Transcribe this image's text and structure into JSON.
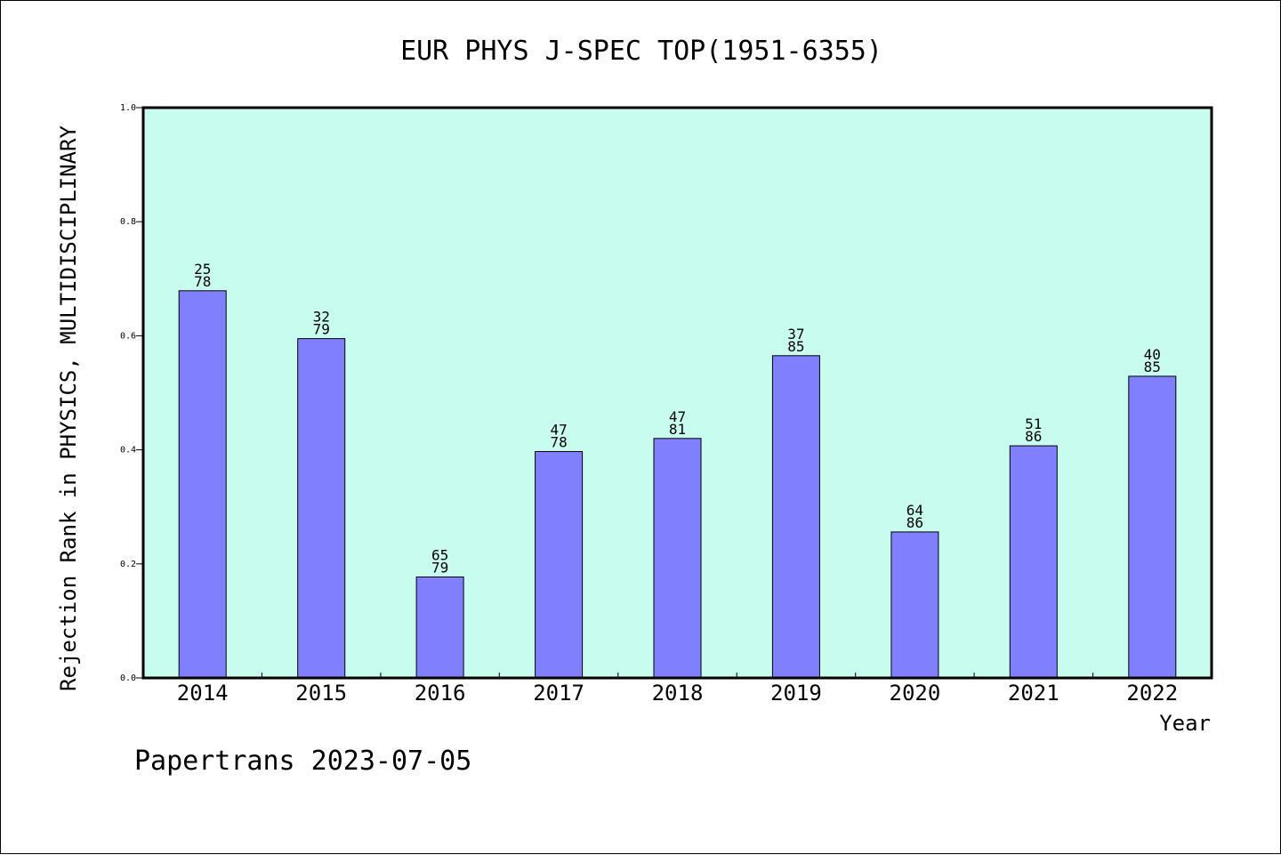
{
  "chart_data": {
    "type": "bar",
    "title": "EUR PHYS J-SPEC TOP(1951-6355)",
    "xlabel": "Year",
    "ylabel": "Rejection Rank in PHYSICS, MULTIDISCIPLINARY",
    "categories": [
      "2014",
      "2015",
      "2016",
      "2017",
      "2018",
      "2019",
      "2020",
      "2021",
      "2022"
    ],
    "values": [
      0.679,
      0.595,
      0.177,
      0.397,
      0.42,
      0.565,
      0.256,
      0.407,
      0.529
    ],
    "bar_labels_top": [
      "25",
      "32",
      "65",
      "47",
      "47",
      "37",
      "64",
      "51",
      "40"
    ],
    "bar_labels_bottom": [
      "78",
      "79",
      "79",
      "78",
      "81",
      "85",
      "86",
      "86",
      "85"
    ],
    "ylim": [
      0,
      1.0
    ],
    "y_ticks": [
      "0.0",
      "0.2",
      "0.4",
      "0.6",
      "0.8",
      "1.0"
    ],
    "grid": false,
    "legend": "none",
    "plot_background": "#c8fcee",
    "bar_color": "#8080ff",
    "footer": "Papertrans 2023-07-05"
  }
}
